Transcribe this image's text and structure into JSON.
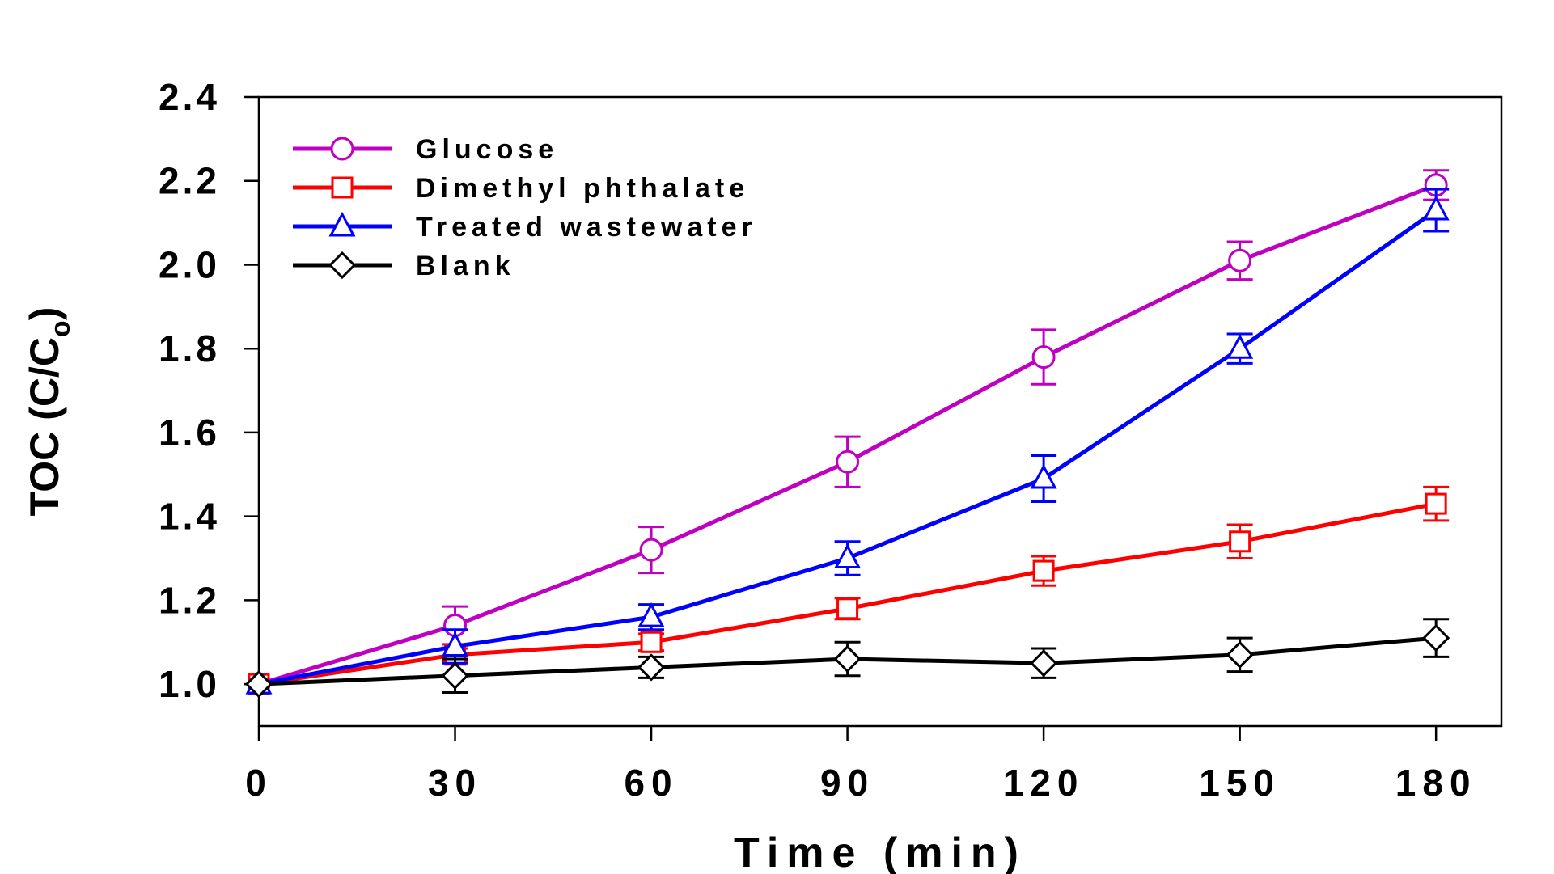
{
  "chart_data": {
    "type": "line",
    "xlabel": "Time (min)",
    "ylabel": "TOC (C/C",
    "ylabel_sub": "o",
    "ylabel_close": ")",
    "x": [
      0,
      30,
      60,
      90,
      120,
      150,
      180
    ],
    "xlim": [
      0,
      190
    ],
    "ylim": [
      0.9,
      2.4
    ],
    "x_ticks": [
      0,
      30,
      60,
      90,
      120,
      150,
      180
    ],
    "y_ticks": [
      1.0,
      1.2,
      1.4,
      1.6,
      1.8,
      2.0,
      2.2,
      2.4
    ],
    "x_tick_labels": [
      "0",
      "30",
      "60",
      "90",
      "120",
      "150",
      "180"
    ],
    "y_tick_labels": [
      "1.0",
      "1.2",
      "1.4",
      "1.6",
      "1.8",
      "2.0",
      "2.2",
      "2.4"
    ],
    "grid": false,
    "legend_position": "top-left",
    "series": [
      {
        "name": "Glucose",
        "color": "#C000C0",
        "marker": "circle",
        "values": [
          1.0,
          1.14,
          1.32,
          1.53,
          1.78,
          2.01,
          2.19
        ],
        "errors": [
          0.0,
          0.045,
          0.055,
          0.06,
          0.065,
          0.045,
          0.035
        ]
      },
      {
        "name": "Dimethyl phthalate",
        "color": "#FF0000",
        "marker": "square",
        "values": [
          1.0,
          1.07,
          1.1,
          1.18,
          1.27,
          1.34,
          1.43
        ],
        "errors": [
          0.0,
          0.015,
          0.02,
          0.025,
          0.035,
          0.04,
          0.04
        ]
      },
      {
        "name": "Treated wastewater",
        "color": "#0000FF",
        "marker": "triangle",
        "values": [
          1.0,
          1.09,
          1.16,
          1.3,
          1.49,
          1.8,
          2.13
        ],
        "errors": [
          0.0,
          0.04,
          0.03,
          0.04,
          0.055,
          0.035,
          0.05
        ]
      },
      {
        "name": "Blank",
        "color": "#000000",
        "marker": "diamond",
        "values": [
          1.0,
          1.02,
          1.04,
          1.06,
          1.05,
          1.07,
          1.11
        ],
        "errors": [
          0.0,
          0.04,
          0.025,
          0.04,
          0.035,
          0.04,
          0.045
        ]
      }
    ]
  }
}
